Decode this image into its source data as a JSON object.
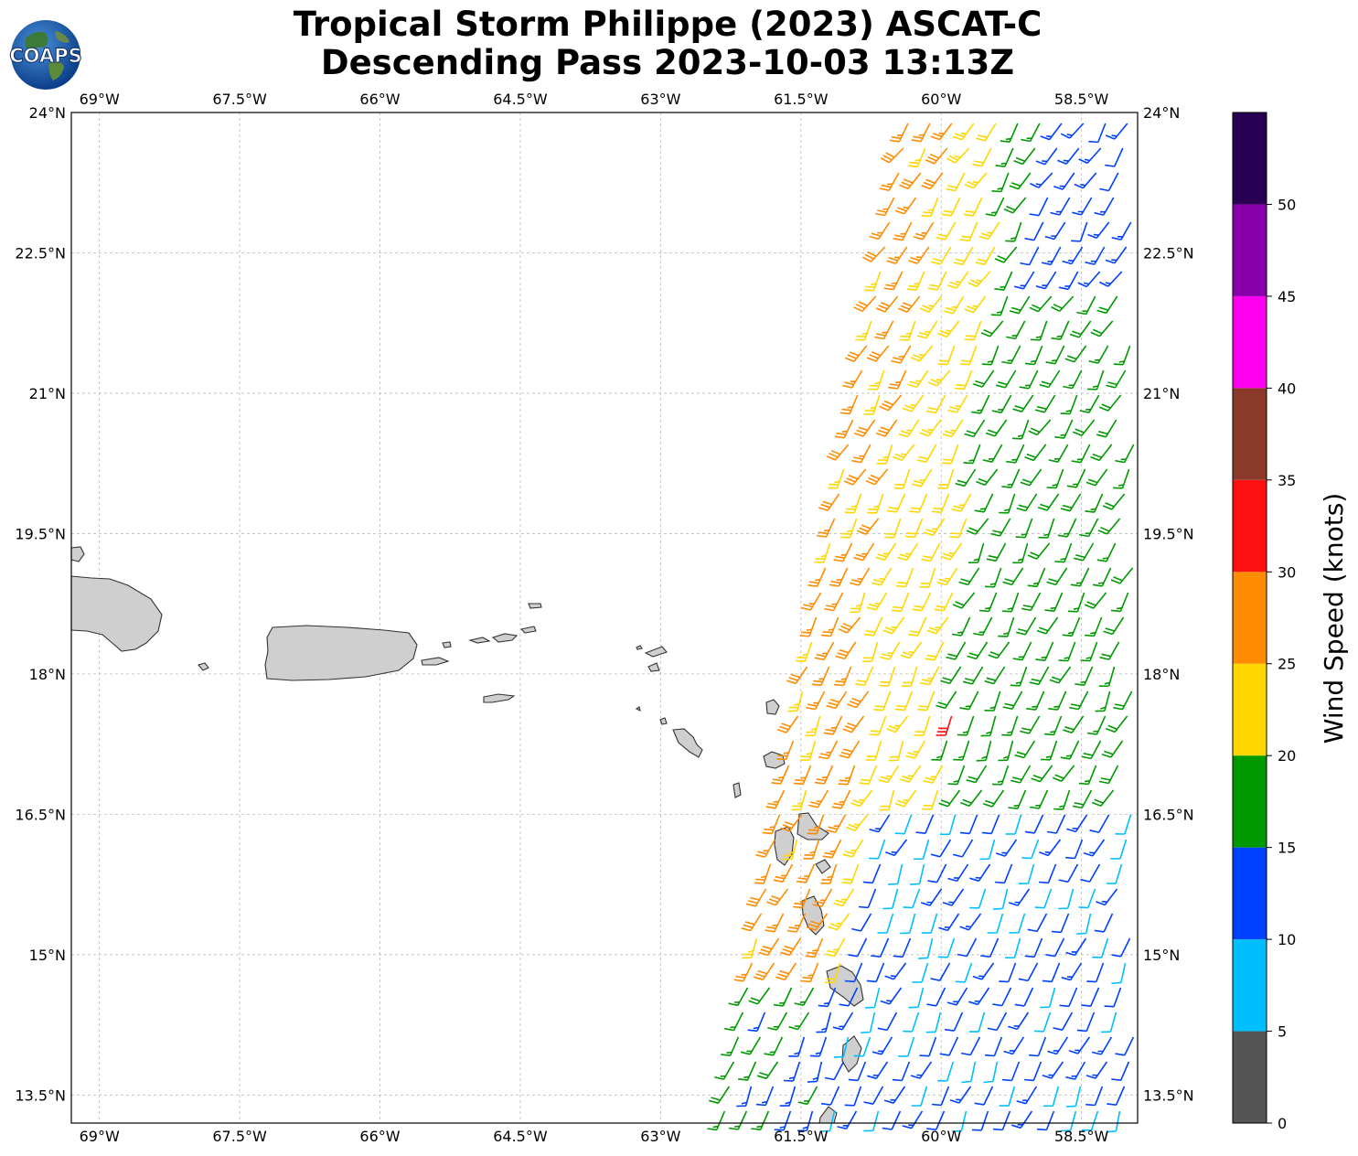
{
  "title": {
    "line1": "Tropical Storm Philippe (2023) ASCAT-C",
    "line2": "Descending Pass 2023-10-03 13:13Z"
  },
  "logo": {
    "text": "COAPS"
  },
  "map": {
    "lon_range": [
      -69.3,
      -57.9
    ],
    "lat_range": [
      13.2,
      24.0
    ],
    "lon_ticks": [
      "69°W",
      "67.5°W",
      "66°W",
      "64.5°W",
      "63°W",
      "61.5°W",
      "60°W",
      "58.5°W"
    ],
    "lon_tick_values": [
      -69.0,
      -67.5,
      -66.0,
      -64.5,
      -63.0,
      -61.5,
      -60.0,
      -58.5
    ],
    "lat_ticks": [
      "24°N",
      "22.5°N",
      "21°N",
      "19.5°N",
      "18°N",
      "16.5°N",
      "15°N",
      "13.5°N"
    ],
    "lat_tick_values": [
      24.0,
      22.5,
      21.0,
      19.5,
      18.0,
      16.5,
      15.0,
      13.5
    ],
    "gridlines": true,
    "land_color": "#cfcfcf",
    "coast_color": "#333333"
  },
  "colorbar": {
    "label": "Wind Speed (knots)",
    "ticks": [
      "0",
      "5",
      "10",
      "15",
      "20",
      "25",
      "30",
      "35",
      "40",
      "45",
      "50"
    ],
    "bins": [
      {
        "range": [
          0,
          5
        ],
        "color": "#555555"
      },
      {
        "range": [
          5,
          10
        ],
        "color": "#00bfff"
      },
      {
        "range": [
          10,
          15
        ],
        "color": "#0040ff"
      },
      {
        "range": [
          15,
          20
        ],
        "color": "#009900"
      },
      {
        "range": [
          20,
          25
        ],
        "color": "#ffd700"
      },
      {
        "range": [
          25,
          30
        ],
        "color": "#ff8c00"
      },
      {
        "range": [
          30,
          35
        ],
        "color": "#ff1010"
      },
      {
        "range": [
          35,
          40
        ],
        "color": "#8b3a2a"
      },
      {
        "range": [
          40,
          45
        ],
        "color": "#ff00ee"
      },
      {
        "range": [
          45,
          50
        ],
        "color": "#8800aa"
      },
      {
        "range": [
          50,
          55
        ],
        "color": "#2a0055"
      }
    ]
  }
}
